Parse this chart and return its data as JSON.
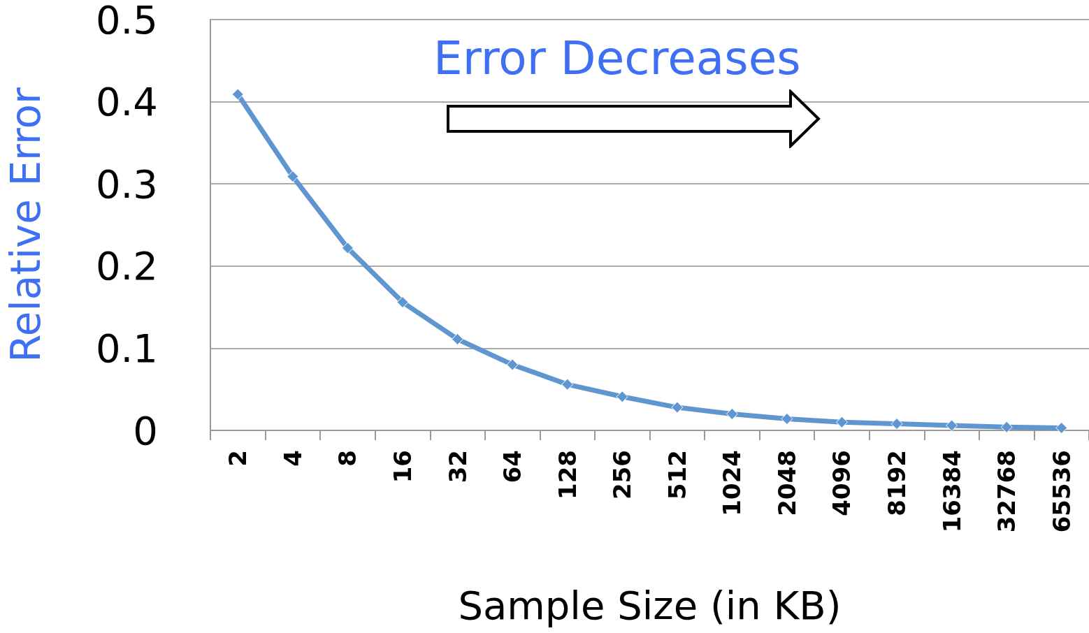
{
  "chart_data": {
    "type": "line",
    "xlabel": "Sample Size (in KB)",
    "ylabel": "Relative Error",
    "categories": [
      "2",
      "4",
      "8",
      "16",
      "32",
      "64",
      "128",
      "256",
      "512",
      "1024",
      "2048",
      "4096",
      "8192",
      "16384",
      "32768",
      "65536"
    ],
    "series": [
      {
        "color": "#6096d0",
        "values": [
          0.409,
          0.309,
          0.222,
          0.156,
          0.111,
          0.08,
          0.056,
          0.041,
          0.028,
          0.02,
          0.014,
          0.01,
          0.008,
          0.006,
          0.004,
          0.003
        ]
      }
    ],
    "ylim": [
      0,
      0.5
    ],
    "yticks": [
      0,
      0.1,
      0.2,
      0.3,
      0.4,
      0.5
    ],
    "grid": "y",
    "marker": "diamond",
    "annotations": [
      "Error Decreases"
    ]
  }
}
